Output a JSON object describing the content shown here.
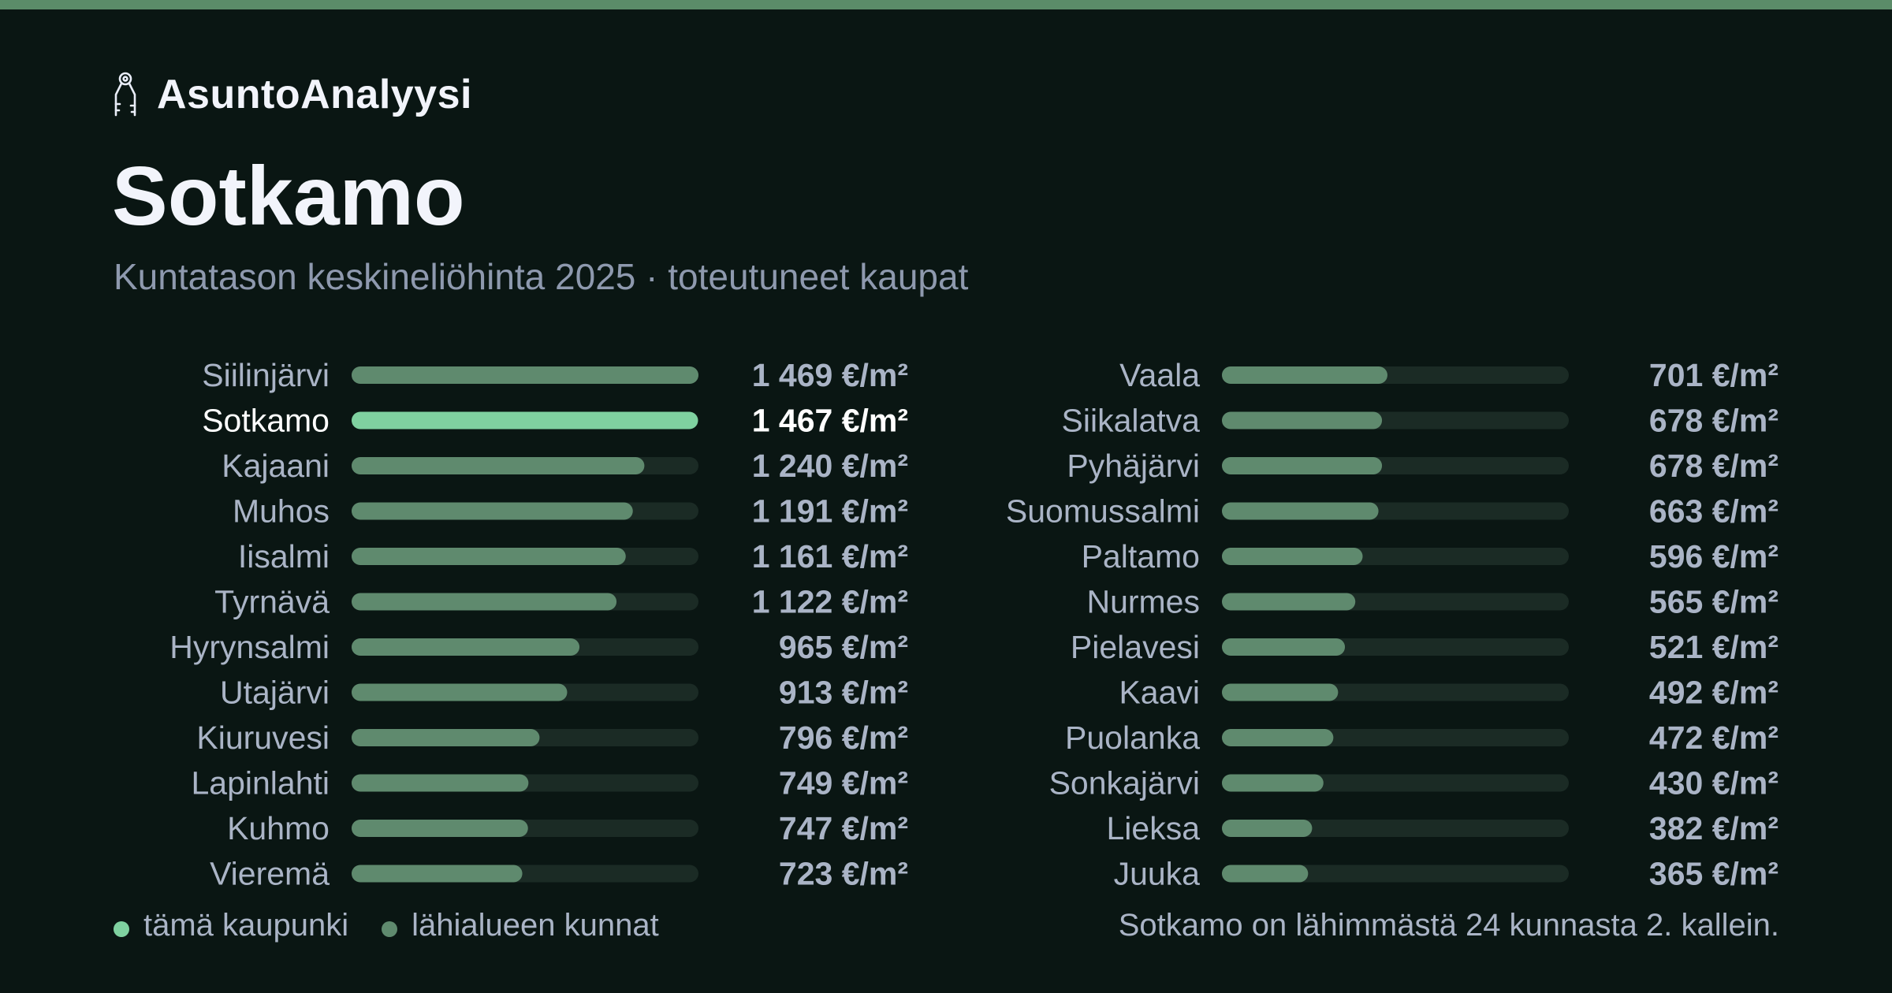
{
  "brand": {
    "name": "AsuntoAnalyysi",
    "icon": "keys-icon"
  },
  "header": {
    "title": "Sotkamo",
    "subtitle": "Kuntatason keskineliöhinta 2025 · toteutuneet kaupat"
  },
  "colors": {
    "background": "#0a1613",
    "accent_bar": "#5b8c69",
    "highlight": "#7fd1a0",
    "neighbor": "#5f8a6e",
    "track": "#1b2b25",
    "label": "#aab4c6",
    "value": "#aab4c6",
    "highlight_text": "#ffffff"
  },
  "chart_data": {
    "type": "bar",
    "orientation": "horizontal",
    "unit": "€/m²",
    "xlim": [
      0,
      1469
    ],
    "highlight": "Sotkamo",
    "columns": [
      {
        "categories": [
          "Siilinjärvi",
          "Sotkamo",
          "Kajaani",
          "Muhos",
          "Iisalmi",
          "Tyrnävä",
          "Hyrynsalmi",
          "Utajärvi",
          "Kiuruvesi",
          "Lapinlahti",
          "Kuhmo",
          "Vieremä"
        ],
        "values": [
          1469,
          1467,
          1240,
          1191,
          1161,
          1122,
          965,
          913,
          796,
          749,
          747,
          723
        ],
        "value_labels": [
          "1 469 €/m²",
          "1 467 €/m²",
          "1 240 €/m²",
          "1 191 €/m²",
          "1 161 €/m²",
          "1 122 €/m²",
          "965 €/m²",
          "913 €/m²",
          "796 €/m²",
          "749 €/m²",
          "747 €/m²",
          "723 €/m²"
        ]
      },
      {
        "categories": [
          "Vaala",
          "Siikalatva",
          "Pyhäjärvi",
          "Suomussalmi",
          "Paltamo",
          "Nurmes",
          "Pielavesi",
          "Kaavi",
          "Puolanka",
          "Sonkajärvi",
          "Lieksa",
          "Juuka"
        ],
        "values": [
          701,
          678,
          678,
          663,
          596,
          565,
          521,
          492,
          472,
          430,
          382,
          365
        ],
        "value_labels": [
          "701 €/m²",
          "678 €/m²",
          "678 €/m²",
          "663 €/m²",
          "596 €/m²",
          "565 €/m²",
          "521 €/m²",
          "492 €/m²",
          "472 €/m²",
          "430 €/m²",
          "382 €/m²",
          "365 €/m²"
        ]
      }
    ]
  },
  "legend": {
    "this_city": "tämä kaupunki",
    "neighbors": "lähialueen kunnat"
  },
  "footnote": "Sotkamo on lähimmästä 24 kunnasta 2. kallein."
}
